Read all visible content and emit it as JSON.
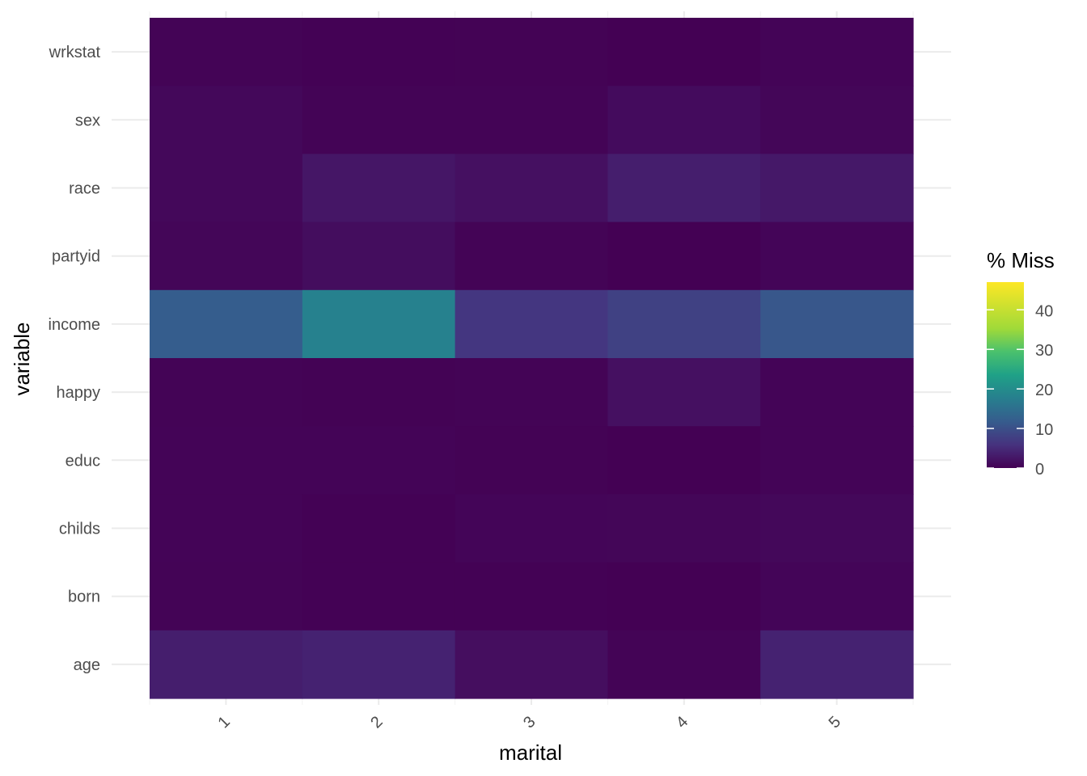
{
  "chart_data": {
    "type": "heatmap",
    "xlabel": "marital",
    "ylabel": "variable",
    "x_categories": [
      "1",
      "2",
      "3",
      "4",
      "5"
    ],
    "y_categories": [
      "wrkstat",
      "sex",
      "race",
      "partyid",
      "income",
      "happy",
      "educ",
      "childs",
      "born",
      "age"
    ],
    "values": [
      [
        0.3,
        0.1,
        0.2,
        0.05,
        0.4
      ],
      [
        0.8,
        0.3,
        0.3,
        1.2,
        0.6
      ],
      [
        0.8,
        2.5,
        1.8,
        3.5,
        2.8
      ],
      [
        0.6,
        1.4,
        0.3,
        0.05,
        0.5
      ],
      [
        12.0,
        18.0,
        6.5,
        8.0,
        11.0
      ],
      [
        0.3,
        0.2,
        0.3,
        1.8,
        0.4
      ],
      [
        0.4,
        0.4,
        0.2,
        0.05,
        0.4
      ],
      [
        0.4,
        0.1,
        0.5,
        0.6,
        0.8
      ],
      [
        0.3,
        0.1,
        0.1,
        0.05,
        0.5
      ],
      [
        3.5,
        4.0,
        1.5,
        0.3,
        4.0
      ]
    ],
    "legend": {
      "title": "% Miss",
      "ticks": [
        "0",
        "10",
        "20",
        "30",
        "40"
      ],
      "tick_values": [
        0,
        10,
        20,
        30,
        40
      ],
      "range": [
        0,
        47
      ],
      "colormap": "viridis",
      "placement": "right"
    },
    "x_tick_rotation": "45deg",
    "grid": true
  }
}
